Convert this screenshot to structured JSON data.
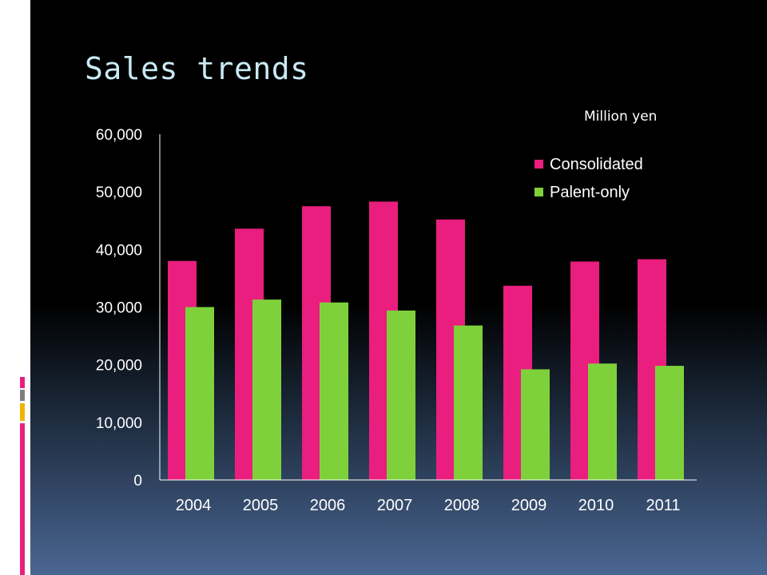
{
  "slide": {
    "title": "Sales trends",
    "unit": "Million yen"
  },
  "colors": {
    "consolidated": "#e91e7e",
    "parent_only": "#7fd13b",
    "deco_pink": "#e91e7e",
    "deco_gray": "#7f7f7f",
    "deco_gold": "#f0b400"
  },
  "chart_data": {
    "type": "bar",
    "categories": [
      "2004",
      "2005",
      "2006",
      "2007",
      "2008",
      "2009",
      "2010",
      "2011"
    ],
    "series": [
      {
        "name": "Consolidated",
        "values": [
          38000,
          43600,
          47500,
          48300,
          45200,
          33700,
          37900,
          38300
        ]
      },
      {
        "name": "Palent-only",
        "values": [
          30000,
          31300,
          30800,
          29400,
          26800,
          19200,
          20200,
          19800
        ]
      }
    ],
    "yticks": [
      "0",
      "10,000",
      "20,000",
      "30,000",
      "40,000",
      "50,000",
      "60,000"
    ],
    "ylim": [
      0,
      60000
    ],
    "grid": false,
    "legend": "top-right"
  }
}
